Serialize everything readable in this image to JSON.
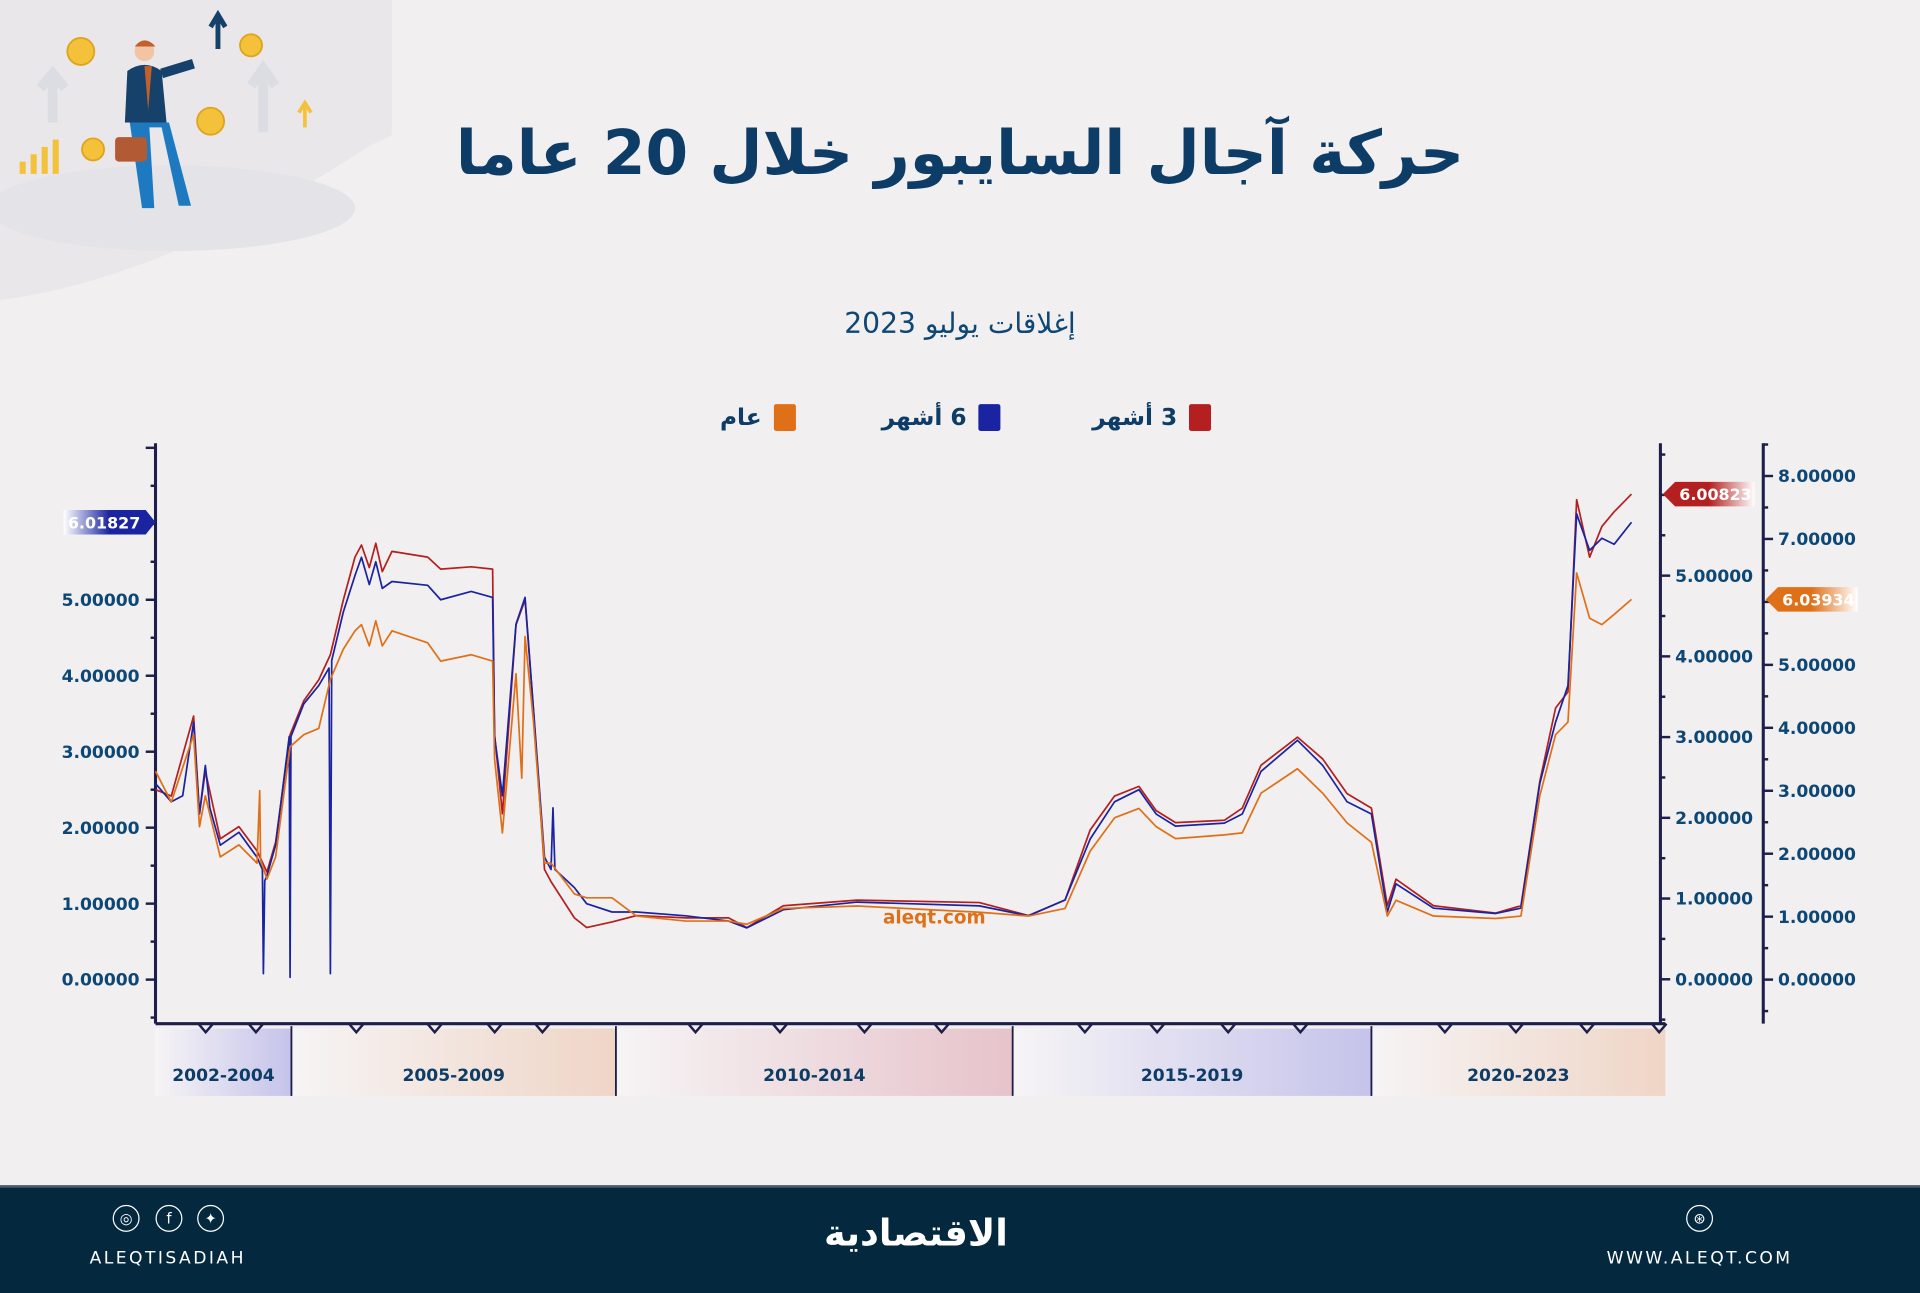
{
  "header": {
    "title": "حركة آجال السايبور خلال 20 عاما",
    "subtitle": "إغلاقات يوليو 2023"
  },
  "legend": [
    {
      "label": "3 أشهر",
      "color": "#b3201f"
    },
    {
      "label": "6 أشهر",
      "color": "#1a24a0"
    },
    {
      "label": "عام",
      "color": "#e07018"
    }
  ],
  "watermark": "aleqt.com",
  "chart_data": {
    "type": "line",
    "title": "حركة آجال السايبور خلال 20 عاما",
    "subtitle": "إغلاقات يوليو 2023",
    "grid": false,
    "legend_position": "top",
    "x_bands": [
      {
        "label": "2002-2004",
        "from": 2002,
        "to": 2005,
        "color": "#c5c3ea"
      },
      {
        "label": "2005-2009",
        "from": 2005,
        "to": 2010,
        "color": "#efd5c6"
      },
      {
        "label": "2010-2014",
        "from": 2010,
        "to": 2015,
        "color": "#e6c3ca"
      },
      {
        "label": "2015-2019",
        "from": 2015,
        "to": 2020,
        "color": "#c5c3ea"
      },
      {
        "label": "2020-2023",
        "from": 2020,
        "to": 2024,
        "color": "#efd5c6"
      }
    ],
    "axes": {
      "left": {
        "ticks": [
          "0.00000",
          "1.00000",
          "2.00000",
          "3.00000",
          "4.00000",
          "5.00000"
        ],
        "tick_values": [
          0,
          1,
          2,
          3,
          4,
          5
        ],
        "ylim": [
          -0.58,
          7.06
        ],
        "color": "#1a24a0"
      },
      "right1": {
        "ticks": [
          "0.00000",
          "1.00000",
          "2.00000",
          "3.00000",
          "4.00000",
          "5.00000"
        ],
        "tick_values": [
          0,
          1,
          2,
          3,
          4,
          5
        ],
        "ylim": [
          -0.55,
          6.64
        ],
        "color": "#b3201f"
      },
      "right2": {
        "ticks": [
          "0.00000",
          "1.00000",
          "2.00000",
          "3.00000",
          "4.00000",
          "5.00000",
          "7.00000",
          "8.00000"
        ],
        "tick_values": [
          0,
          1,
          2,
          3,
          4,
          5,
          7,
          8
        ],
        "ylim": [
          -0.7,
          8.52
        ],
        "color": "#e07018"
      }
    },
    "series": [
      {
        "name": "3 أشهر",
        "axis": "right1",
        "color": "#b3201f",
        "last_value_label": "6.00823",
        "points": [
          [
            2002.0,
            2.35
          ],
          [
            2002.35,
            2.27
          ],
          [
            2002.84,
            3.26
          ],
          [
            2002.97,
            2.05
          ],
          [
            2003.1,
            2.58
          ],
          [
            2003.43,
            1.74
          ],
          [
            2003.84,
            1.89
          ],
          [
            2004.24,
            1.59
          ],
          [
            2004.46,
            1.33
          ],
          [
            2004.65,
            1.7
          ],
          [
            2004.97,
            3.03
          ],
          [
            2005.19,
            3.45
          ],
          [
            2005.42,
            3.71
          ],
          [
            2005.6,
            4.02
          ],
          [
            2005.8,
            4.7
          ],
          [
            2005.98,
            5.23
          ],
          [
            2006.08,
            5.38
          ],
          [
            2006.2,
            5.1
          ],
          [
            2006.3,
            5.4
          ],
          [
            2006.4,
            5.05
          ],
          [
            2006.55,
            5.3
          ],
          [
            2007.1,
            5.23
          ],
          [
            2007.3,
            5.08
          ],
          [
            2007.77,
            5.11
          ],
          [
            2008.1,
            5.08
          ],
          [
            2008.13,
            3.03
          ],
          [
            2008.25,
            2.05
          ],
          [
            2008.46,
            4.39
          ],
          [
            2008.6,
            4.7
          ],
          [
            2008.73,
            3.33
          ],
          [
            2008.9,
            1.36
          ],
          [
            2009.0,
            1.21
          ],
          [
            2009.36,
            0.76
          ],
          [
            2009.55,
            0.64
          ],
          [
            2009.94,
            0.71
          ],
          [
            2010.26,
            0.79
          ],
          [
            2010.88,
            0.76
          ],
          [
            2011.42,
            0.76
          ],
          [
            2011.65,
            0.64
          ],
          [
            2012.11,
            0.91
          ],
          [
            2013.04,
            0.98
          ],
          [
            2014.58,
            0.95
          ],
          [
            2015.22,
            0.79
          ],
          [
            2015.73,
            0.98
          ],
          [
            2016.08,
            1.85
          ],
          [
            2016.42,
            2.27
          ],
          [
            2016.76,
            2.39
          ],
          [
            2017.0,
            2.09
          ],
          [
            2017.27,
            1.94
          ],
          [
            2017.95,
            1.97
          ],
          [
            2018.2,
            2.12
          ],
          [
            2018.46,
            2.65
          ],
          [
            2018.97,
            3.0
          ],
          [
            2019.32,
            2.73
          ],
          [
            2019.66,
            2.3
          ],
          [
            2020.0,
            2.12
          ],
          [
            2020.22,
            0.91
          ],
          [
            2020.34,
            1.24
          ],
          [
            2020.86,
            0.91
          ],
          [
            2021.72,
            0.82
          ],
          [
            2022.07,
            0.91
          ],
          [
            2022.33,
            2.45
          ],
          [
            2022.55,
            3.36
          ],
          [
            2022.72,
            3.56
          ],
          [
            2022.84,
            5.94
          ],
          [
            2023.02,
            5.23
          ],
          [
            2023.19,
            5.61
          ],
          [
            2023.36,
            5.79
          ],
          [
            2023.6,
            6.01
          ]
        ]
      },
      {
        "name": "6 أشهر",
        "axis": "left",
        "color": "#1a24a0",
        "last_value_label": "6.01827",
        "points": [
          [
            2002.0,
            2.58
          ],
          [
            2002.35,
            2.34
          ],
          [
            2002.6,
            2.42
          ],
          [
            2002.84,
            3.39
          ],
          [
            2002.97,
            2.18
          ],
          [
            2003.1,
            2.82
          ],
          [
            2003.2,
            2.26
          ],
          [
            2003.43,
            1.77
          ],
          [
            2003.84,
            1.94
          ],
          [
            2004.24,
            1.61
          ],
          [
            2004.36,
            1.45
          ],
          [
            2004.38,
            0.08
          ],
          [
            2004.41,
            1.3
          ],
          [
            2004.46,
            1.37
          ],
          [
            2004.65,
            1.77
          ],
          [
            2004.95,
            3.2
          ],
          [
            2004.97,
            0.03
          ],
          [
            2004.99,
            3.2
          ],
          [
            2005.19,
            3.63
          ],
          [
            2005.42,
            3.87
          ],
          [
            2005.58,
            4.1
          ],
          [
            2005.6,
            0.08
          ],
          [
            2005.62,
            4.2
          ],
          [
            2005.8,
            4.84
          ],
          [
            2005.98,
            5.32
          ],
          [
            2006.08,
            5.56
          ],
          [
            2006.2,
            5.2
          ],
          [
            2006.3,
            5.5
          ],
          [
            2006.4,
            5.15
          ],
          [
            2006.55,
            5.24
          ],
          [
            2007.1,
            5.19
          ],
          [
            2007.3,
            5.0
          ],
          [
            2007.77,
            5.11
          ],
          [
            2008.1,
            5.03
          ],
          [
            2008.13,
            3.2
          ],
          [
            2008.25,
            2.42
          ],
          [
            2008.46,
            4.68
          ],
          [
            2008.6,
            5.03
          ],
          [
            2008.73,
            3.55
          ],
          [
            2008.9,
            1.61
          ],
          [
            2009.0,
            1.45
          ],
          [
            2009.03,
            2.26
          ],
          [
            2009.06,
            1.45
          ],
          [
            2009.36,
            1.21
          ],
          [
            2009.55,
            1.0
          ],
          [
            2009.94,
            0.89
          ],
          [
            2010.26,
            0.89
          ],
          [
            2010.88,
            0.84
          ],
          [
            2011.42,
            0.77
          ],
          [
            2011.65,
            0.68
          ],
          [
            2012.11,
            0.92
          ],
          [
            2013.04,
            1.02
          ],
          [
            2014.58,
            0.97
          ],
          [
            2015.22,
            0.84
          ],
          [
            2015.73,
            1.05
          ],
          [
            2016.08,
            1.85
          ],
          [
            2016.42,
            2.34
          ],
          [
            2016.76,
            2.5
          ],
          [
            2017.0,
            2.18
          ],
          [
            2017.27,
            2.02
          ],
          [
            2017.95,
            2.06
          ],
          [
            2018.2,
            2.18
          ],
          [
            2018.46,
            2.74
          ],
          [
            2018.97,
            3.15
          ],
          [
            2019.32,
            2.82
          ],
          [
            2019.66,
            2.34
          ],
          [
            2020.0,
            2.18
          ],
          [
            2020.22,
            0.89
          ],
          [
            2020.34,
            1.26
          ],
          [
            2020.86,
            0.94
          ],
          [
            2021.72,
            0.87
          ],
          [
            2022.07,
            0.94
          ],
          [
            2022.33,
            2.58
          ],
          [
            2022.55,
            3.39
          ],
          [
            2022.72,
            3.87
          ],
          [
            2022.84,
            6.13
          ],
          [
            2023.02,
            5.65
          ],
          [
            2023.19,
            5.81
          ],
          [
            2023.36,
            5.73
          ],
          [
            2023.6,
            6.02
          ]
        ]
      },
      {
        "name": "عام",
        "axis": "right2",
        "color": "#e07018",
        "last_value_label": "6.03934",
        "points": [
          [
            2002.0,
            3.31
          ],
          [
            2002.35,
            2.82
          ],
          [
            2002.84,
            3.89
          ],
          [
            2002.97,
            2.43
          ],
          [
            2003.1,
            2.92
          ],
          [
            2003.43,
            1.95
          ],
          [
            2003.84,
            2.14
          ],
          [
            2004.24,
            1.85
          ],
          [
            2004.3,
            3.0
          ],
          [
            2004.32,
            1.9
          ],
          [
            2004.46,
            1.6
          ],
          [
            2004.65,
            1.95
          ],
          [
            2004.97,
            3.7
          ],
          [
            2005.19,
            3.89
          ],
          [
            2005.42,
            3.99
          ],
          [
            2005.6,
            4.77
          ],
          [
            2005.8,
            5.25
          ],
          [
            2005.98,
            5.54
          ],
          [
            2006.08,
            5.64
          ],
          [
            2006.2,
            5.3
          ],
          [
            2006.3,
            5.7
          ],
          [
            2006.4,
            5.3
          ],
          [
            2006.55,
            5.54
          ],
          [
            2007.1,
            5.35
          ],
          [
            2007.3,
            5.06
          ],
          [
            2007.77,
            5.16
          ],
          [
            2008.1,
            5.06
          ],
          [
            2008.13,
            3.5
          ],
          [
            2008.25,
            2.33
          ],
          [
            2008.46,
            4.86
          ],
          [
            2008.55,
            3.2
          ],
          [
            2008.6,
            5.45
          ],
          [
            2008.73,
            4.09
          ],
          [
            2008.9,
            1.85
          ],
          [
            2009.0,
            1.85
          ],
          [
            2009.36,
            1.36
          ],
          [
            2009.55,
            1.3
          ],
          [
            2009.94,
            1.3
          ],
          [
            2010.26,
            1.01
          ],
          [
            2010.88,
            0.93
          ],
          [
            2011.42,
            0.93
          ],
          [
            2011.65,
            0.88
          ],
          [
            2012.11,
            1.13
          ],
          [
            2013.04,
            1.17
          ],
          [
            2014.58,
            1.07
          ],
          [
            2015.22,
            1.01
          ],
          [
            2015.73,
            1.13
          ],
          [
            2016.08,
            2.04
          ],
          [
            2016.42,
            2.57
          ],
          [
            2016.76,
            2.72
          ],
          [
            2017.0,
            2.43
          ],
          [
            2017.27,
            2.24
          ],
          [
            2017.95,
            2.3
          ],
          [
            2018.2,
            2.33
          ],
          [
            2018.46,
            2.96
          ],
          [
            2018.97,
            3.35
          ],
          [
            2019.32,
            2.96
          ],
          [
            2019.66,
            2.49
          ],
          [
            2020.0,
            2.18
          ],
          [
            2020.22,
            1.01
          ],
          [
            2020.34,
            1.26
          ],
          [
            2020.86,
            1.01
          ],
          [
            2021.72,
            0.97
          ],
          [
            2022.07,
            1.01
          ],
          [
            2022.33,
            2.92
          ],
          [
            2022.55,
            3.89
          ],
          [
            2022.72,
            4.09
          ],
          [
            2022.84,
            6.46
          ],
          [
            2023.02,
            5.74
          ],
          [
            2023.19,
            5.64
          ],
          [
            2023.36,
            5.8
          ],
          [
            2023.6,
            6.04
          ]
        ]
      }
    ]
  },
  "footer": {
    "social_handle": "ALEQTISADIAH",
    "logo_text": "الاقتصادية",
    "website": "WWW.ALEQT.COM",
    "icons": [
      "instagram-icon",
      "facebook-icon",
      "twitter-icon",
      "dribbble-globe-icon"
    ]
  }
}
